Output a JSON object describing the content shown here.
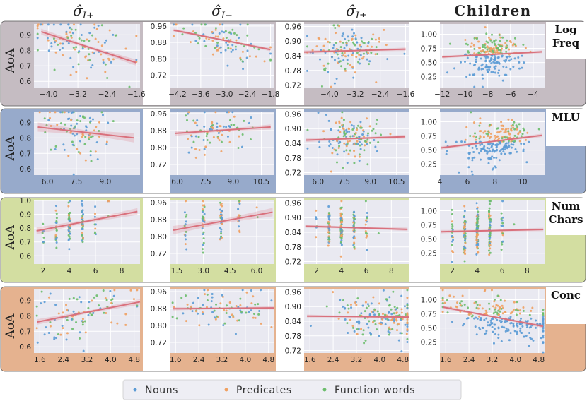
{
  "chart_data": {
    "type": "scatter",
    "title": "",
    "columns": [
      {
        "key": "pos",
        "symbol": "σ̂",
        "sub": "I+"
      },
      {
        "key": "neg",
        "symbol": "σ̂",
        "sub": "I−"
      },
      {
        "key": "pm",
        "symbol": "σ̂",
        "sub": "I±"
      },
      {
        "key": "children",
        "label": "Children"
      }
    ],
    "ylabel": "AoA",
    "legend": {
      "position": "bottom",
      "entries": [
        {
          "name": "Nouns",
          "color": "#5b9bd5"
        },
        {
          "name": "Predicates",
          "color": "#f0a060"
        },
        {
          "name": "Function words",
          "color": "#6cbd6c"
        }
      ]
    },
    "rows": [
      {
        "label_lines": [
          "Log",
          "Freq"
        ],
        "band_color": "#c5bcc2",
        "panels": [
          {
            "xlim": [
              -4.4,
              -1.5
            ],
            "ylim": [
              0.56,
              0.97
            ],
            "xticks": [
              -4.0,
              -3.2,
              -2.4,
              -1.6
            ],
            "xtick_labels": [
              "−4.0",
              "−3.2",
              "−2.4",
              "−1.6"
            ],
            "yticks": [
              0.6,
              0.7,
              0.8,
              0.9
            ],
            "ytick_labels": [
              "0.6",
              "0.7",
              "0.8",
              "0.9"
            ],
            "fit": {
              "x": [
                -4.2,
                -1.6
              ],
              "y": [
                0.92,
                0.72
              ]
            },
            "band_width": 0.02,
            "cloud": {
              "xr": [
                -4.3,
                -1.6
              ],
              "xc": -3.2,
              "xs": 0.7,
              "ys": 0.09,
              "n": 110
            }
          },
          {
            "xlim": [
              -4.4,
              -1.7
            ],
            "ylim": [
              0.66,
              0.97
            ],
            "xticks": [
              -4.2,
              -3.6,
              -3.0,
              -2.4,
              -1.8
            ],
            "xtick_labels": [
              "−4.2",
              "−3.6",
              "−3.0",
              "−2.4",
              "−1.8"
            ],
            "yticks": [
              0.72,
              0.8,
              0.88,
              0.96
            ],
            "ytick_labels": [
              "0.72",
              "0.80",
              "0.88",
              "0.96"
            ],
            "fit": {
              "x": [
                -4.3,
                -1.8
              ],
              "y": [
                0.94,
                0.845
              ]
            },
            "band_width": 0.008,
            "cloud": {
              "xr": [
                -4.3,
                -1.8
              ],
              "xc": -3.0,
              "xs": 0.6,
              "ys": 0.05,
              "n": 95
            }
          },
          {
            "xlim": [
              -4.8,
              -1.5
            ],
            "ylim": [
              0.71,
              0.97
            ],
            "xticks": [
              -4.0,
              -3.2,
              -2.4,
              -1.6
            ],
            "xtick_labels": [
              "−4.0",
              "−3.2",
              "−2.4",
              "−1.6"
            ],
            "yticks": [
              0.72,
              0.78,
              0.84,
              0.9,
              0.96
            ],
            "ytick_labels": [
              "0.72",
              "0.78",
              "0.84",
              "0.90",
              "0.96"
            ],
            "fit": {
              "x": [
                -4.8,
                -1.6
              ],
              "y": [
                0.855,
                0.867
              ]
            },
            "band_width": 0.007,
            "cloud": {
              "xr": [
                -4.7,
                -1.6
              ],
              "xc": -3.6,
              "xs": 0.6,
              "ys": 0.05,
              "n": 150
            }
          },
          {
            "xlim": [
              -12.2,
              -3.0
            ],
            "ylim": [
              0.06,
              1.18
            ],
            "xticks": [
              -12,
              -10,
              -8,
              -6,
              -4
            ],
            "xtick_labels": [
              "−12",
              "−10",
              "−8",
              "−6",
              "−4"
            ],
            "yticks": [
              0.25,
              0.5,
              0.75,
              1.0
            ],
            "ytick_labels": [
              "0.25",
              "0.50",
              "0.75",
              "1.00"
            ],
            "fit": {
              "x": [
                -12,
                -3.2
              ],
              "y": [
                0.6,
                0.69
              ]
            },
            "band_width": 0.025,
            "cloud": {
              "xr": [
                -12,
                -3.2
              ],
              "xc": -7.7,
              "xs": 1.3,
              "ys": 0.18,
              "n": 230
            }
          }
        ]
      },
      {
        "label_lines": [
          "MLU"
        ],
        "band_color": "#97aacb",
        "panels": [
          {
            "xlim": [
              5.3,
              10.8
            ],
            "ylim": [
              0.56,
              0.97
            ],
            "xticks": [
              6.0,
              7.5,
              9.0
            ],
            "xtick_labels": [
              "6.0",
              "7.5",
              "9.0"
            ],
            "yticks": [
              0.6,
              0.7,
              0.8,
              0.9
            ],
            "ytick_labels": [
              "0.6",
              "0.7",
              "0.8",
              "0.9"
            ],
            "fit": {
              "x": [
                5.5,
                10.5
              ],
              "y": [
                0.87,
                0.8
              ]
            },
            "band_width": 0.03,
            "cloud": {
              "xr": [
                5.6,
                10.5
              ],
              "xc": 7.5,
              "xs": 0.9,
              "ys": 0.09,
              "n": 95
            }
          },
          {
            "xlim": [
              5.6,
              11.2
            ],
            "ylim": [
              0.67,
              0.97
            ],
            "xticks": [
              6.0,
              7.5,
              9.0,
              10.5
            ],
            "xtick_labels": [
              "6.0",
              "7.5",
              "9.0",
              "10.5"
            ],
            "yticks": [
              0.72,
              0.8,
              0.88,
              0.96
            ],
            "ytick_labels": [
              "0.72",
              "0.80",
              "0.88",
              "0.96"
            ],
            "fit": {
              "x": [
                5.9,
                11.0
              ],
              "y": [
                0.867,
                0.897
              ]
            },
            "band_width": 0.012,
            "cloud": {
              "xr": [
                5.9,
                10.9
              ],
              "xc": 8.0,
              "xs": 0.9,
              "ys": 0.05,
              "n": 90
            }
          },
          {
            "xlim": [
              5.2,
              11.2
            ],
            "ylim": [
              0.71,
              0.97
            ],
            "xticks": [
              6.0,
              7.5,
              9.0,
              10.5
            ],
            "xtick_labels": [
              "6.0",
              "7.5",
              "9.0",
              "10.5"
            ],
            "yticks": [
              0.72,
              0.78,
              0.84,
              0.9,
              0.96
            ],
            "ytick_labels": [
              "0.72",
              "0.78",
              "0.84",
              "0.90",
              "0.96"
            ],
            "fit": {
              "x": [
                5.3,
                11.0
              ],
              "y": [
                0.853,
                0.867
              ]
            },
            "band_width": 0.008,
            "cloud": {
              "xr": [
                5.4,
                10.9
              ],
              "xc": 7.9,
              "xs": 0.9,
              "ys": 0.045,
              "n": 140
            }
          },
          {
            "xlim": [
              4.0,
              11.6
            ],
            "ylim": [
              0.06,
              1.18
            ],
            "xticks": [
              4,
              6,
              8,
              10
            ],
            "xtick_labels": [
              "4",
              "6",
              "8",
              "10"
            ],
            "yticks": [
              0.25,
              0.5,
              0.75,
              1.0
            ],
            "ytick_labels": [
              "0.25",
              "0.50",
              "0.75",
              "1.00"
            ],
            "fit": {
              "x": [
                4.1,
                11.4
              ],
              "y": [
                0.54,
                0.76
              ]
            },
            "band_width": 0.03,
            "cloud": {
              "xr": [
                4.2,
                11.2
              ],
              "xc": 7.9,
              "xs": 1.3,
              "ys": 0.2,
              "n": 230
            }
          }
        ]
      },
      {
        "label_lines": [
          "Num",
          "Chars"
        ],
        "band_color": "#d3dea1",
        "panels": [
          {
            "xlim": [
              1.3,
              9.4
            ],
            "ylim": [
              0.54,
              1.0
            ],
            "xticks": [
              2,
              4,
              6,
              8
            ],
            "xtick_labels": [
              "2",
              "4",
              "6",
              "8"
            ],
            "yticks": [
              0.6,
              0.7,
              0.8,
              0.9,
              1.0
            ],
            "ytick_labels": [
              "0.6",
              "0.7",
              "0.8",
              "0.9",
              "1.0"
            ],
            "fit": {
              "x": [
                1.5,
                9.2
              ],
              "y": [
                0.78,
                0.92
              ]
            },
            "band_width": 0.025,
            "cloud": {
              "xr": [
                2,
                9
              ],
              "xc": 4.2,
              "xs": 1.0,
              "ys": 0.08,
              "n": 115,
              "discrete": true
            }
          },
          {
            "xlim": [
              1.1,
              7.0
            ],
            "ylim": [
              0.67,
              0.97
            ],
            "xticks": [
              1.5,
              3.0,
              4.5,
              6.0
            ],
            "xtick_labels": [
              "1.5",
              "3.0",
              "4.5",
              "6.0"
            ],
            "yticks": [
              0.72,
              0.8,
              0.88,
              0.96
            ],
            "ytick_labels": [
              "0.72",
              "0.80",
              "0.88",
              "0.96"
            ],
            "fit": {
              "x": [
                1.3,
                6.9
              ],
              "y": [
                0.83,
                0.915
              ]
            },
            "band_width": 0.02,
            "cloud": {
              "xr": [
                2,
                6
              ],
              "xc": 3.8,
              "xs": 0.9,
              "ys": 0.05,
              "n": 90,
              "discrete": true
            }
          },
          {
            "xlim": [
              1.0,
              9.4
            ],
            "ylim": [
              0.71,
              0.97
            ],
            "xticks": [
              2,
              4,
              6,
              8
            ],
            "xtick_labels": [
              "2",
              "4",
              "6",
              "8"
            ],
            "yticks": [
              0.72,
              0.78,
              0.84,
              0.9,
              0.96
            ],
            "ytick_labels": [
              "0.72",
              "0.78",
              "0.84",
              "0.90",
              "0.96"
            ],
            "fit": {
              "x": [
                1.1,
                9.3
              ],
              "y": [
                0.865,
                0.852
              ]
            },
            "band_width": 0.007,
            "cloud": {
              "xr": [
                2,
                7
              ],
              "xc": 4.2,
              "xs": 1.1,
              "ys": 0.045,
              "n": 170,
              "discrete": true
            }
          },
          {
            "xlim": [
              1.0,
              9.4
            ],
            "ylim": [
              0.06,
              1.18
            ],
            "xticks": [
              2,
              4,
              6,
              8
            ],
            "xtick_labels": [
              "2",
              "4",
              "6",
              "8"
            ],
            "yticks": [
              0.25,
              0.5,
              0.75,
              1.0
            ],
            "ytick_labels": [
              "0.25",
              "0.50",
              "0.75",
              "1.00"
            ],
            "fit": {
              "x": [
                1.1,
                9.3
              ],
              "y": [
                0.63,
                0.67
              ]
            },
            "band_width": 0.03,
            "cloud": {
              "xr": [
                2,
                9
              ],
              "xc": 4.0,
              "xs": 1.0,
              "ys": 0.2,
              "n": 220,
              "discrete": true
            }
          }
        ]
      },
      {
        "label_lines": [
          "Conc"
        ],
        "band_color": "#e5b28f",
        "panels": [
          {
            "xlim": [
              1.4,
              5.0
            ],
            "ylim": [
              0.56,
              0.97
            ],
            "xticks": [
              1.6,
              2.4,
              3.2,
              4.0,
              4.8
            ],
            "xtick_labels": [
              "1.6",
              "2.4",
              "3.2",
              "4.0",
              "4.8"
            ],
            "yticks": [
              0.6,
              0.7,
              0.8,
              0.9
            ],
            "ytick_labels": [
              "0.6",
              "0.7",
              "0.8",
              "0.9"
            ],
            "fit": {
              "x": [
                1.5,
                5.0
              ],
              "y": [
                0.76,
                0.89
              ]
            },
            "band_width": 0.018,
            "cloud": {
              "xr": [
                1.5,
                4.9
              ],
              "xc": 3.0,
              "xs": 0.9,
              "ys": 0.08,
              "n": 95
            }
          },
          {
            "xlim": [
              1.4,
              5.0
            ],
            "ylim": [
              0.67,
              0.97
            ],
            "xticks": [
              1.6,
              2.4,
              3.2,
              4.0,
              4.8
            ],
            "xtick_labels": [
              "1.6",
              "2.4",
              "3.2",
              "4.0",
              "4.8"
            ],
            "yticks": [
              0.72,
              0.8,
              0.88,
              0.96
            ],
            "ytick_labels": [
              "0.72",
              "0.80",
              "0.88",
              "0.96"
            ],
            "fit": {
              "x": [
                1.5,
                5.0
              ],
              "y": [
                0.879,
                0.883
              ]
            },
            "band_width": 0.008,
            "cloud": {
              "xr": [
                1.5,
                4.9
              ],
              "xc": 3.1,
              "xs": 0.9,
              "ys": 0.04,
              "n": 90
            }
          },
          {
            "xlim": [
              1.4,
              5.0
            ],
            "ylim": [
              0.71,
              0.97
            ],
            "xticks": [
              1.6,
              2.4,
              3.2,
              4.0,
              4.8
            ],
            "xtick_labels": [
              "1.6",
              "2.4",
              "3.2",
              "4.0",
              "4.8"
            ],
            "yticks": [
              0.72,
              0.78,
              0.84,
              0.9,
              0.96
            ],
            "ytick_labels": [
              "0.72",
              "0.78",
              "0.84",
              "0.90",
              "0.96"
            ],
            "fit": {
              "x": [
                1.5,
                5.0
              ],
              "y": [
                0.861,
                0.857
              ]
            },
            "band_width": 0.006,
            "cloud": {
              "xr": [
                1.5,
                4.95
              ],
              "xc": 4.2,
              "xs": 0.9,
              "ys": 0.045,
              "n": 180
            }
          },
          {
            "xlim": [
              1.4,
              5.0
            ],
            "ylim": [
              0.06,
              1.18
            ],
            "xticks": [
              1.6,
              2.4,
              3.2,
              4.0,
              4.8
            ],
            "xtick_labels": [
              "1.6",
              "2.4",
              "3.2",
              "4.0",
              "4.8"
            ],
            "yticks": [
              0.25,
              0.5,
              0.75,
              1.0
            ],
            "ytick_labels": [
              "0.25",
              "0.50",
              "0.75",
              "1.00"
            ],
            "fit": {
              "x": [
                1.5,
                4.95
              ],
              "y": [
                0.87,
                0.53
              ]
            },
            "band_width": 0.03,
            "cloud": {
              "xr": [
                1.5,
                4.95
              ],
              "xc": 3.6,
              "xs": 1.0,
              "ys": 0.17,
              "n": 240
            }
          }
        ]
      }
    ]
  }
}
